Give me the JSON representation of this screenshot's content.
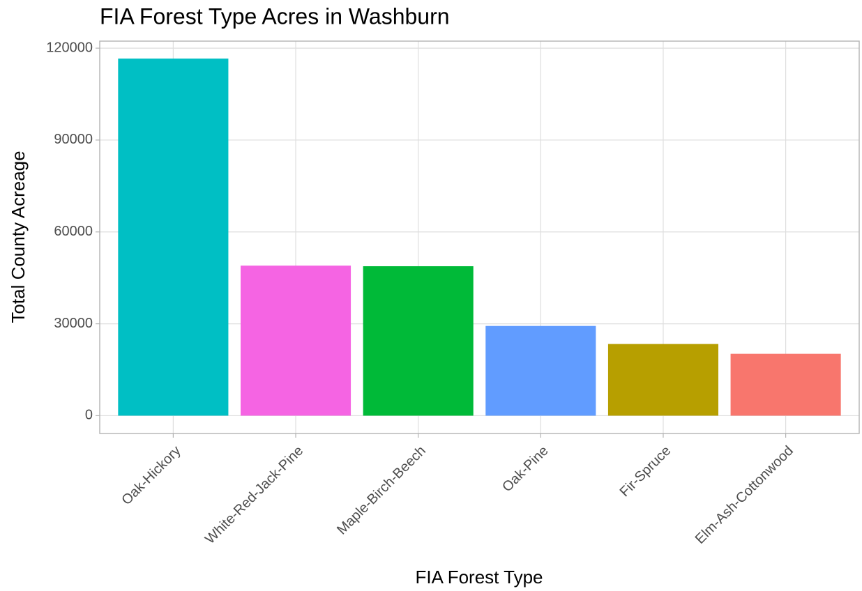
{
  "chart_data": {
    "type": "bar",
    "title": "FIA Forest Type Acres in Washburn",
    "x_label": "FIA Forest Type",
    "y_label": "Total County Acreage",
    "categories": [
      "Oak-Hickory",
      "White-Red-Jack-Pine",
      "Maple-Birch-Beech",
      "Oak-Pine",
      "Fir-Spruce",
      "Elm-Ash-Cottonwood"
    ],
    "values": [
      116600,
      49000,
      48800,
      29300,
      23400,
      20200
    ],
    "colors": [
      "#00BFC4",
      "#F564E3",
      "#00BA38",
      "#619CFF",
      "#B79F00",
      "#F8766D"
    ],
    "ylim": [
      -5820,
      122300
    ],
    "yticks": [
      0,
      30000,
      60000,
      90000,
      120000
    ],
    "grid": true
  }
}
